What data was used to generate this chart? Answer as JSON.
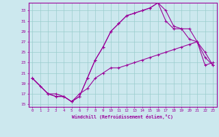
{
  "xlabel": "Windchill (Refroidissement éolien,°C)",
  "background_color": "#cce8ee",
  "grid_color": "#99cccc",
  "line_color": "#990099",
  "xlim": [
    -0.5,
    23.5
  ],
  "ylim": [
    14.5,
    34.5
  ],
  "yticks": [
    15,
    17,
    19,
    21,
    23,
    25,
    27,
    29,
    31,
    33
  ],
  "xticks": [
    0,
    1,
    2,
    3,
    4,
    5,
    6,
    7,
    8,
    9,
    10,
    11,
    12,
    13,
    14,
    15,
    16,
    17,
    18,
    19,
    20,
    21,
    22,
    23
  ],
  "line1_x": [
    0,
    1,
    2,
    3,
    4,
    5,
    6,
    7,
    8,
    9,
    10,
    11,
    12,
    13,
    14,
    15,
    16,
    17,
    18,
    19,
    20,
    21,
    22,
    23
  ],
  "line1_y": [
    20,
    18.5,
    17,
    17,
    16.5,
    15.5,
    17,
    18,
    20,
    21,
    22,
    22,
    22.5,
    23,
    23.5,
    24,
    24.5,
    25,
    25.5,
    26,
    26.5,
    27,
    22.5,
    23
  ],
  "line2_x": [
    0,
    2,
    3,
    4,
    5,
    6,
    7,
    8,
    9,
    10,
    11,
    12,
    13,
    14,
    15,
    16,
    17,
    18,
    19,
    20,
    21,
    22,
    23
  ],
  "line2_y": [
    20,
    17,
    16.5,
    16.5,
    15.5,
    16.5,
    20,
    23.5,
    26,
    29,
    30.5,
    32,
    32.5,
    33,
    33.5,
    34.5,
    33,
    30,
    29.5,
    29.5,
    27,
    24,
    22.5
  ],
  "line3_x": [
    0,
    2,
    3,
    4,
    5,
    6,
    7,
    8,
    9,
    10,
    11,
    12,
    13,
    14,
    15,
    16,
    17,
    18,
    19,
    20,
    21,
    22,
    23
  ],
  "line3_y": [
    20,
    17,
    16.5,
    16.5,
    15.5,
    16.5,
    20,
    23.5,
    26,
    29,
    30.5,
    32,
    32.5,
    33,
    33.5,
    34.5,
    31,
    29.5,
    29.5,
    27.5,
    27,
    25,
    22.5
  ]
}
